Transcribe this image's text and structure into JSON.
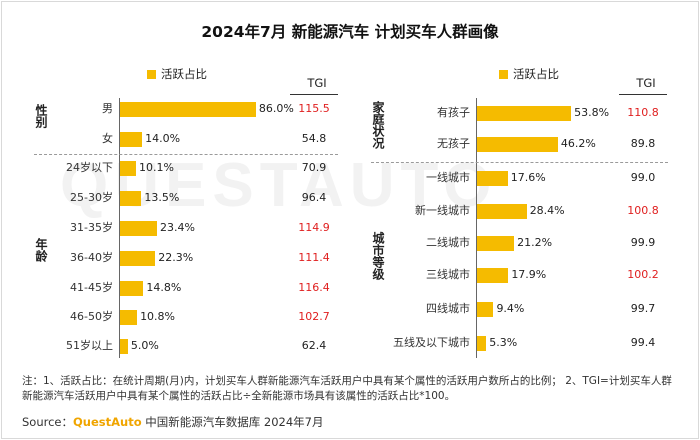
{
  "title": "2024年7月 新能源汽车 计划买车人群画像",
  "watermark": "QUESTAUTO",
  "legend_label": "活跃占比",
  "tgi_header": "TGI",
  "colors": {
    "bar": "#f5bb00",
    "tgi_high": "#e02020",
    "tgi_normal": "#222222"
  },
  "chart_data": [
    {
      "type": "bar",
      "orientation": "horizontal",
      "panel": "left",
      "groups": [
        {
          "label": "性别",
          "categories": [
            "男",
            "女"
          ],
          "values": [
            86.0,
            14.0
          ],
          "value_labels": [
            "86.0%",
            "14.0%"
          ],
          "tgi": [
            "115.5",
            "54.8"
          ],
          "tgi_high": [
            true,
            false
          ]
        },
        {
          "label": "年龄",
          "categories": [
            "24岁以下",
            "25-30岁",
            "31-35岁",
            "36-40岁",
            "41-45岁",
            "46-50岁",
            "51岁以上"
          ],
          "values": [
            10.1,
            13.5,
            23.4,
            22.3,
            14.8,
            10.8,
            5.0
          ],
          "value_labels": [
            "10.1%",
            "13.5%",
            "23.4%",
            "22.3%",
            "14.8%",
            "10.8%",
            "5.0%"
          ],
          "tgi": [
            "70.9",
            "96.4",
            "114.9",
            "111.4",
            "116.4",
            "102.7",
            "62.4"
          ],
          "tgi_high": [
            false,
            false,
            true,
            true,
            true,
            true,
            false
          ]
        }
      ]
    },
    {
      "type": "bar",
      "orientation": "horizontal",
      "panel": "right",
      "groups": [
        {
          "label": "家庭状况",
          "categories": [
            "有孩子",
            "无孩子"
          ],
          "values": [
            53.8,
            46.2
          ],
          "value_labels": [
            "53.8%",
            "46.2%"
          ],
          "tgi": [
            "110.8",
            "89.8"
          ],
          "tgi_high": [
            true,
            false
          ]
        },
        {
          "label": "城市等级",
          "categories": [
            "一线城市",
            "新一线城市",
            "二线城市",
            "三线城市",
            "四线城市",
            "五线及以下城市"
          ],
          "values": [
            17.6,
            28.4,
            21.2,
            17.9,
            9.4,
            5.3
          ],
          "value_labels": [
            "17.6%",
            "28.4%",
            "21.2%",
            "17.9%",
            "9.4%",
            "5.3%"
          ],
          "tgi": [
            "99.0",
            "100.8",
            "99.9",
            "100.2",
            "99.7",
            "99.4"
          ],
          "tgi_high": [
            false,
            true,
            false,
            true,
            false,
            false
          ]
        }
      ]
    }
  ],
  "note": "注：1、活跃占比：在统计周期(月)内，计划买车人群新能源汽车活跃用户中具有某个属性的活跃用户数所占的比例； 2、TGI=计划买车人群新能源汽车活跃用户中具有某个属性的活跃占比÷全新能源市场具有该属性的活跃占比*100。",
  "source": {
    "prefix": "Source：",
    "brand": "QuestAuto",
    "text": "中国新能源汽车数据库 2024年7月"
  }
}
